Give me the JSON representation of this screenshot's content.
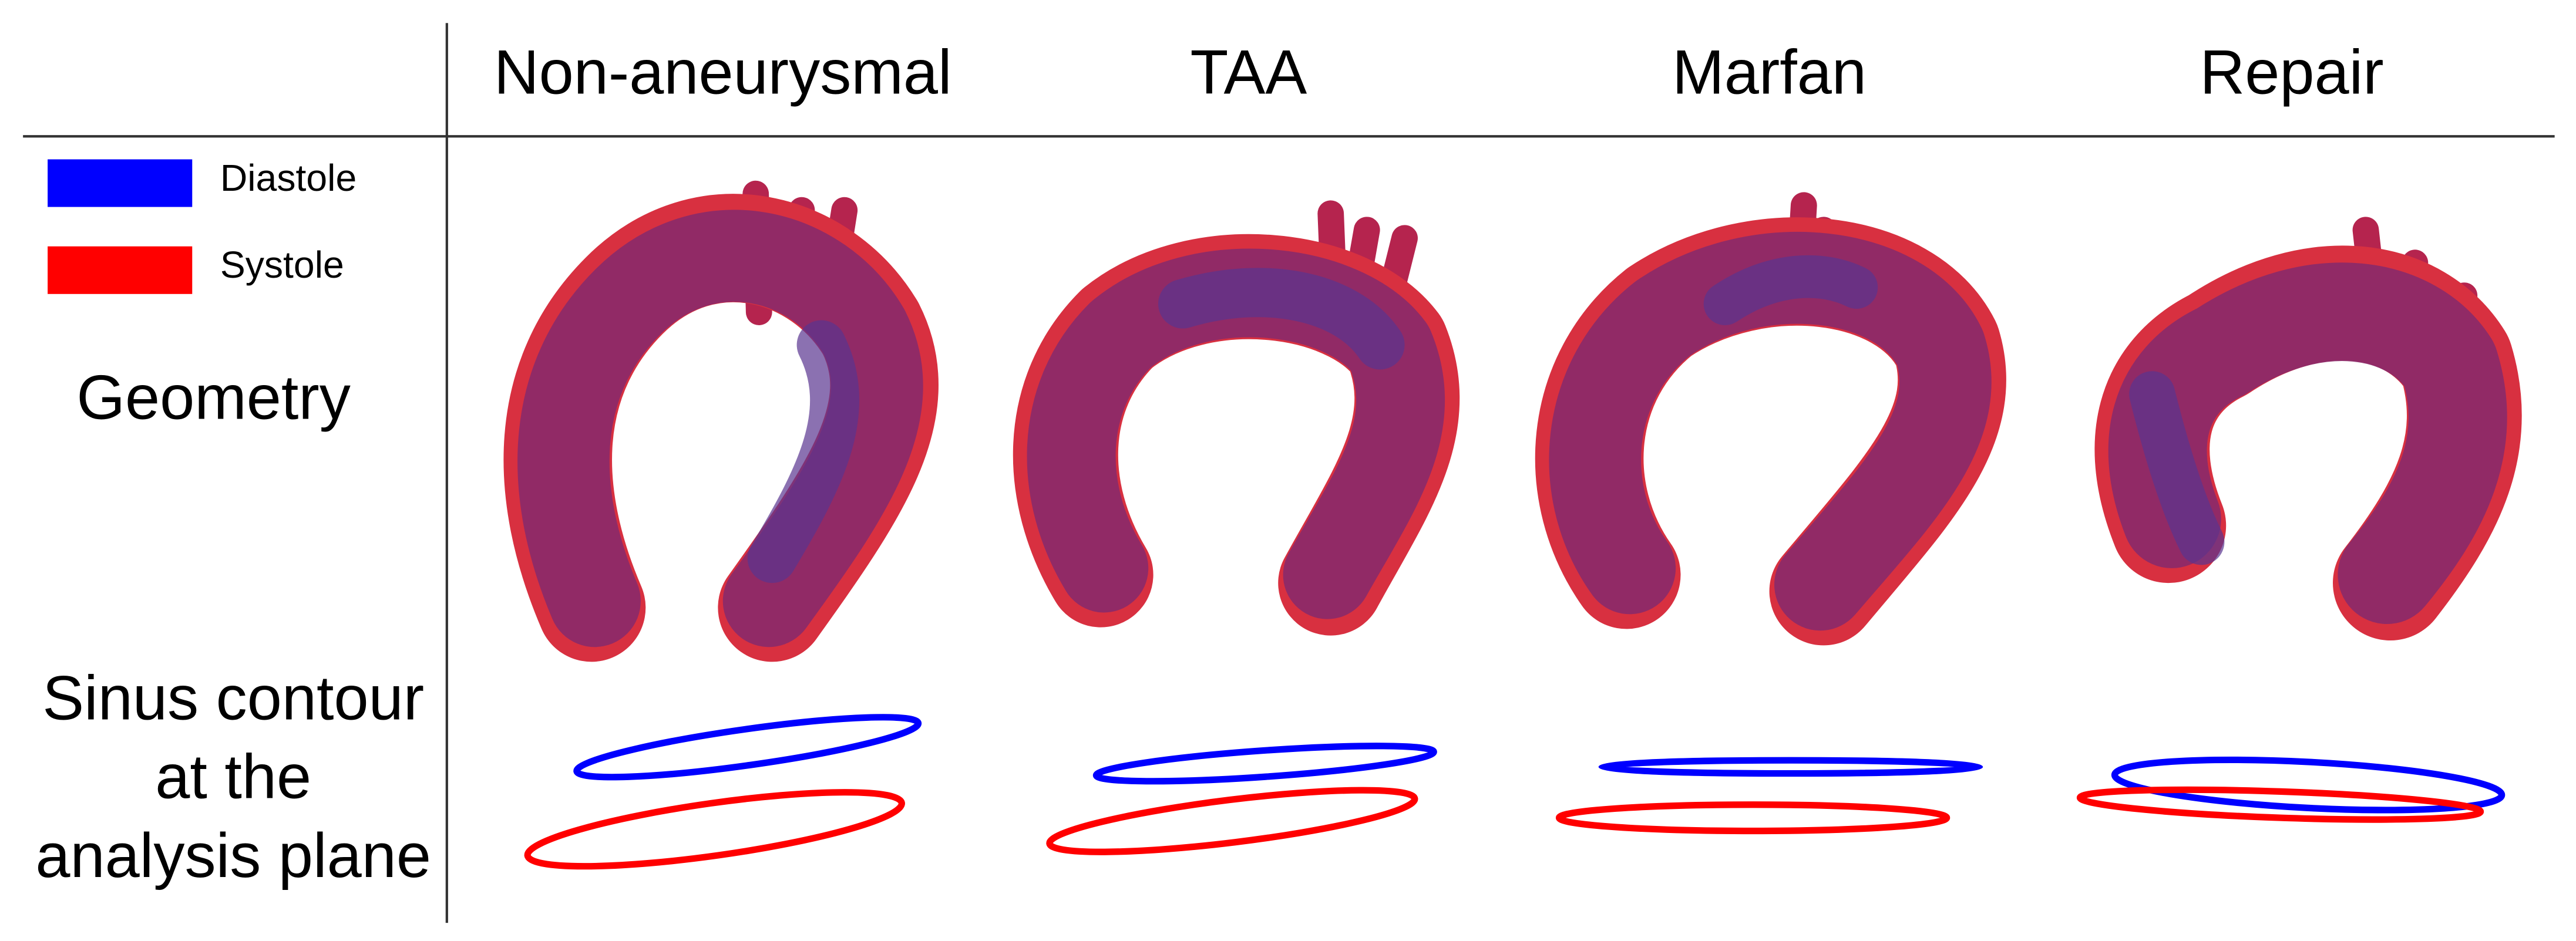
{
  "columns": [
    "Non-aneurysmal",
    "TAA",
    "Marfan",
    "Repair"
  ],
  "legend": [
    {
      "label": "Diastole",
      "color": "#0000ff"
    },
    {
      "label": "Systole",
      "color": "#ff0000"
    }
  ],
  "rows": [
    {
      "label_lines": [
        "Geometry"
      ]
    },
    {
      "label_lines": [
        "Sinus contour",
        "at the",
        "analysis plane"
      ]
    }
  ]
}
